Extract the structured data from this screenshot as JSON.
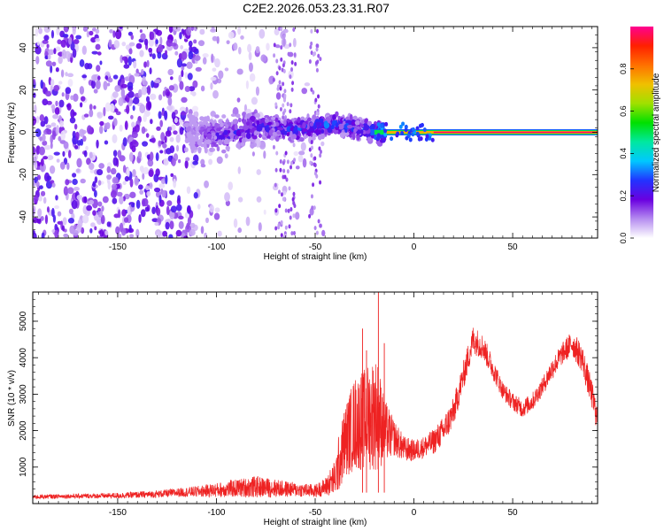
{
  "figure": {
    "title": "C2E2.2026.053.23.31.R07"
  },
  "chart_data": [
    {
      "type": "heatmap",
      "xlabel": "Height of straight line (km)",
      "ylabel": "Frequency (Hz)",
      "xlim": [
        -193,
        93
      ],
      "ylim": [
        -50,
        50
      ],
      "xticks": [
        -150,
        -100,
        -50,
        0,
        50
      ],
      "yticks": [
        -40,
        -20,
        0,
        20,
        40
      ],
      "colorbar": {
        "label": "Normalized spectral amplitude",
        "range": [
          0.0,
          1.0
        ],
        "ticks": [
          0.0,
          0.2,
          0.4,
          0.6,
          0.8
        ],
        "tick_labels": [
          "0.0",
          "0.2",
          "0.4",
          "0.6",
          "0.8"
        ],
        "colors": [
          "#ffffff",
          "#b58cf0",
          "#6a00e0",
          "#2233ff",
          "#00c8ff",
          "#00e8a0",
          "#00e000",
          "#a0e000",
          "#f0c000",
          "#ff7000",
          "#ff2000",
          "#ff0090"
        ]
      },
      "grid": false,
      "ridge": [
        {
          "x": -110,
          "f": 0,
          "amp": 0.12
        },
        {
          "x": -100,
          "f": -2,
          "amp": 0.22
        },
        {
          "x": -90,
          "f": 0,
          "amp": 0.25
        },
        {
          "x": -80,
          "f": 3,
          "amp": 0.28
        },
        {
          "x": -70,
          "f": 2,
          "amp": 0.27
        },
        {
          "x": -60,
          "f": 1,
          "amp": 0.3
        },
        {
          "x": -50,
          "f": 3,
          "amp": 0.32
        },
        {
          "x": -40,
          "f": 4,
          "amp": 0.33
        },
        {
          "x": -30,
          "f": 2,
          "amp": 0.3
        },
        {
          "x": -20,
          "f": 0,
          "amp": 0.35
        },
        {
          "x": -10,
          "f": 0,
          "amp": 0.6
        },
        {
          "x": 0,
          "f": 0,
          "amp": 0.8
        },
        {
          "x": 10,
          "f": 0,
          "amp": 0.9
        },
        {
          "x": 50,
          "f": 0,
          "amp": 0.95
        },
        {
          "x": 92,
          "f": 0,
          "amp": 0.95
        }
      ]
    },
    {
      "type": "line",
      "xlabel": "Height of straight line (km)",
      "ylabel": "SNR (10 * v/v)",
      "xlim": [
        -193,
        93
      ],
      "ylim": [
        0,
        5800
      ],
      "xticks": [
        -150,
        -100,
        -50,
        0,
        50
      ],
      "yticks": [
        1000,
        2000,
        3000,
        4000,
        5000
      ],
      "grid": false,
      "line_color": "#ee2222",
      "series": [
        {
          "envelope_x": [
            -193,
            -180,
            -160,
            -150,
            -140,
            -130,
            -120,
            -110,
            -100,
            -90,
            -80,
            -70,
            -60,
            -50,
            -45,
            -40,
            -38,
            -35,
            -30,
            -25,
            -20,
            -18,
            -15,
            -10,
            -5,
            0,
            5,
            10,
            15,
            20,
            25,
            30,
            35,
            40,
            45,
            50,
            55,
            60,
            65,
            70,
            75,
            80,
            85,
            90,
            93
          ],
          "envelope_mid": [
            180,
            200,
            210,
            220,
            240,
            260,
            300,
            330,
            370,
            420,
            460,
            420,
            380,
            350,
            450,
            700,
            1100,
            1700,
            2200,
            2300,
            2500,
            2400,
            2000,
            1800,
            1500,
            1450,
            1550,
            1700,
            2000,
            2500,
            3500,
            4500,
            4300,
            3700,
            3100,
            2800,
            2600,
            2800,
            3200,
            3700,
            4100,
            4400,
            4000,
            3000,
            2300
          ],
          "envelope_amp": [
            60,
            60,
            70,
            80,
            90,
            100,
            120,
            150,
            200,
            250,
            300,
            250,
            200,
            180,
            250,
            500,
            800,
            1000,
            1300,
            1400,
            1600,
            1500,
            900,
            500,
            350,
            300,
            300,
            350,
            400,
            400,
            400,
            400,
            350,
            300,
            250,
            250,
            250,
            250,
            250,
            300,
            300,
            350,
            400,
            400,
            400
          ],
          "peaks": [
            {
              "x": -18,
              "y": 5800
            },
            {
              "x": -26,
              "y": 4800
            },
            {
              "x": -15,
              "y": 4400
            },
            {
              "x": -24,
              "y": 4200
            }
          ]
        }
      ]
    }
  ]
}
